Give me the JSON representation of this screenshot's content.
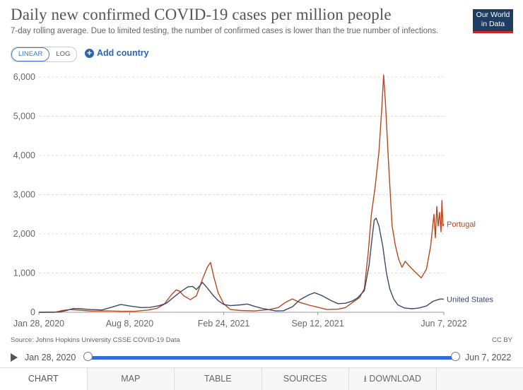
{
  "header": {
    "title": "Daily new confirmed COVID-19 cases per million people",
    "subtitle": "7-day rolling average. Due to limited testing, the number of confirmed cases is lower than the true number of infections.",
    "logo_line1": "Our World",
    "logo_line2": "in Data"
  },
  "controls": {
    "scale_linear": "LINEAR",
    "scale_log": "LOG",
    "add_country": "Add country"
  },
  "footer": {
    "source": "Source: Johns Hopkins University CSSE COVID-19 Data",
    "license": "CC BY"
  },
  "timeline": {
    "start": "Jan 28, 2020",
    "end": "Jun 7, 2022"
  },
  "tabs": [
    {
      "label": "CHART"
    },
    {
      "label": "MAP"
    },
    {
      "label": "TABLE"
    },
    {
      "label": "SOURCES"
    },
    {
      "label": "DOWNLOAD"
    },
    {
      "label": ""
    }
  ],
  "colors": {
    "portugal": "#b8471f",
    "united_states": "#3b4a6b",
    "accent": "#2f6ed5"
  },
  "chart_data": {
    "type": "line",
    "title": "Daily new confirmed COVID-19 cases per million people",
    "x_type": "date",
    "ylim": [
      0,
      6000
    ],
    "yticks": [
      0,
      1000,
      2000,
      3000,
      4000,
      5000,
      6000
    ],
    "ytick_labels": [
      "0",
      "1,000",
      "2,000",
      "3,000",
      "4,000",
      "5,000",
      "6,000"
    ],
    "xticks": [
      "2020-01-28",
      "2020-08-08",
      "2021-02-24",
      "2021-09-12",
      "2022-06-07"
    ],
    "xtick_labels": [
      "Jan 28, 2020",
      "Aug 8, 2020",
      "Feb 24, 2021",
      "Sep 12, 2021",
      "Jun 7, 2022"
    ],
    "grid": "horizontal",
    "series": [
      {
        "name": "Portugal",
        "color": "#b8471f",
        "points": [
          [
            "2020-01-28",
            0
          ],
          [
            "2020-03-01",
            0
          ],
          [
            "2020-03-20",
            50
          ],
          [
            "2020-04-05",
            70
          ],
          [
            "2020-04-25",
            50
          ],
          [
            "2020-05-20",
            30
          ],
          [
            "2020-06-20",
            35
          ],
          [
            "2020-07-20",
            25
          ],
          [
            "2020-08-20",
            25
          ],
          [
            "2020-09-15",
            55
          ],
          [
            "2020-10-05",
            100
          ],
          [
            "2020-10-20",
            200
          ],
          [
            "2020-11-05",
            450
          ],
          [
            "2020-11-15",
            570
          ],
          [
            "2020-11-22",
            540
          ],
          [
            "2020-12-01",
            420
          ],
          [
            "2020-12-15",
            320
          ],
          [
            "2020-12-28",
            420
          ],
          [
            "2021-01-10",
            850
          ],
          [
            "2021-01-20",
            1150
          ],
          [
            "2021-01-27",
            1270
          ],
          [
            "2021-02-03",
            900
          ],
          [
            "2021-02-12",
            500
          ],
          [
            "2021-02-24",
            220
          ],
          [
            "2021-03-10",
            70
          ],
          [
            "2021-04-01",
            45
          ],
          [
            "2021-05-01",
            35
          ],
          [
            "2021-06-01",
            70
          ],
          [
            "2021-06-20",
            120
          ],
          [
            "2021-07-05",
            250
          ],
          [
            "2021-07-20",
            340
          ],
          [
            "2021-08-05",
            250
          ],
          [
            "2021-08-25",
            180
          ],
          [
            "2021-09-12",
            130
          ],
          [
            "2021-10-01",
            70
          ],
          [
            "2021-10-25",
            80
          ],
          [
            "2021-11-10",
            120
          ],
          [
            "2021-11-25",
            250
          ],
          [
            "2021-12-10",
            380
          ],
          [
            "2021-12-20",
            600
          ],
          [
            "2021-12-28",
            1500
          ],
          [
            "2022-01-04",
            2500
          ],
          [
            "2022-01-12",
            3200
          ],
          [
            "2022-01-20",
            4100
          ],
          [
            "2022-01-26",
            5200
          ],
          [
            "2022-01-30",
            6050
          ],
          [
            "2022-02-03",
            5300
          ],
          [
            "2022-02-10",
            3700
          ],
          [
            "2022-02-17",
            2200
          ],
          [
            "2022-02-24",
            1700
          ],
          [
            "2022-03-03",
            1350
          ],
          [
            "2022-03-10",
            1150
          ],
          [
            "2022-03-17",
            1300
          ],
          [
            "2022-03-24",
            1200
          ],
          [
            "2022-04-05",
            1050
          ],
          [
            "2022-04-20",
            880
          ],
          [
            "2022-05-01",
            1100
          ],
          [
            "2022-05-10",
            1700
          ],
          [
            "2022-05-17",
            2500
          ],
          [
            "2022-05-20",
            1900
          ],
          [
            "2022-05-23",
            2700
          ],
          [
            "2022-05-26",
            2200
          ],
          [
            "2022-05-29",
            2550
          ],
          [
            "2022-06-01",
            2050
          ],
          [
            "2022-06-03",
            2850
          ],
          [
            "2022-06-05",
            2200
          ],
          [
            "2022-06-07",
            2250
          ]
        ]
      },
      {
        "name": "United States",
        "color": "#3b4a6b",
        "points": [
          [
            "2020-01-28",
            0
          ],
          [
            "2020-03-10",
            5
          ],
          [
            "2020-03-25",
            40
          ],
          [
            "2020-04-10",
            95
          ],
          [
            "2020-04-25",
            90
          ],
          [
            "2020-05-15",
            70
          ],
          [
            "2020-06-10",
            60
          ],
          [
            "2020-07-01",
            130
          ],
          [
            "2020-07-20",
            200
          ],
          [
            "2020-08-08",
            160
          ],
          [
            "2020-09-01",
            120
          ],
          [
            "2020-09-20",
            125
          ],
          [
            "2020-10-10",
            170
          ],
          [
            "2020-10-25",
            230
          ],
          [
            "2020-11-10",
            390
          ],
          [
            "2020-11-25",
            530
          ],
          [
            "2020-12-10",
            650
          ],
          [
            "2020-12-20",
            660
          ],
          [
            "2020-12-28",
            580
          ],
          [
            "2021-01-10",
            760
          ],
          [
            "2021-01-20",
            620
          ],
          [
            "2021-02-01",
            440
          ],
          [
            "2021-02-12",
            300
          ],
          [
            "2021-02-24",
            200
          ],
          [
            "2021-03-10",
            170
          ],
          [
            "2021-04-01",
            190
          ],
          [
            "2021-04-15",
            210
          ],
          [
            "2021-05-01",
            150
          ],
          [
            "2021-05-20",
            90
          ],
          [
            "2021-06-15",
            35
          ],
          [
            "2021-07-01",
            40
          ],
          [
            "2021-07-20",
            140
          ],
          [
            "2021-08-05",
            320
          ],
          [
            "2021-08-25",
            450
          ],
          [
            "2021-09-05",
            500
          ],
          [
            "2021-09-20",
            430
          ],
          [
            "2021-10-10",
            300
          ],
          [
            "2021-10-25",
            220
          ],
          [
            "2021-11-10",
            230
          ],
          [
            "2021-11-25",
            290
          ],
          [
            "2021-12-05",
            360
          ],
          [
            "2021-12-20",
            550
          ],
          [
            "2021-12-30",
            1200
          ],
          [
            "2022-01-05",
            1850
          ],
          [
            "2022-01-10",
            2350
          ],
          [
            "2022-01-14",
            2400
          ],
          [
            "2022-01-20",
            2200
          ],
          [
            "2022-01-28",
            1700
          ],
          [
            "2022-02-05",
            1000
          ],
          [
            "2022-02-12",
            600
          ],
          [
            "2022-02-20",
            350
          ],
          [
            "2022-03-01",
            190
          ],
          [
            "2022-03-15",
            110
          ],
          [
            "2022-04-01",
            90
          ],
          [
            "2022-04-15",
            110
          ],
          [
            "2022-05-01",
            160
          ],
          [
            "2022-05-15",
            280
          ],
          [
            "2022-05-25",
            320
          ],
          [
            "2022-06-01",
            340
          ],
          [
            "2022-06-07",
            330
          ]
        ]
      }
    ]
  }
}
